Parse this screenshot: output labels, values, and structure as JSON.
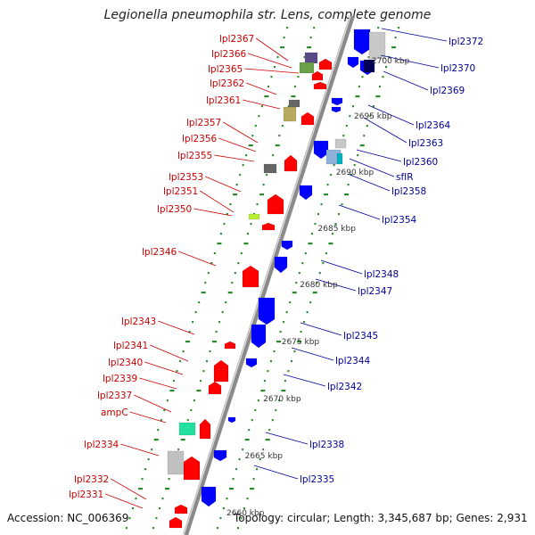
{
  "title": "Legionella pneumophila str. Lens, complete genome",
  "footer": {
    "accession": "Accession: NC_006369",
    "topology": "Topology: circular; Length: 3,345,687 bp; Genes: 2,931"
  },
  "colors": {
    "left_label": "#cc0000",
    "right_label": "#000099",
    "backbone": "#8c8c8c",
    "tick": "#2a8a2a",
    "forward_gene": "#ff0000",
    "reverse_gene": "#0000ff"
  },
  "scale_labels": [
    "2700 kbp",
    "2695 kbp",
    "2690 kbp",
    "2685 kbp",
    "2680 kbp",
    "2675 kbp",
    "2670 kbp",
    "2665 kbp",
    "2660 kbp"
  ],
  "left_genes": [
    "lpl2367",
    "lpl2366",
    "lpl2365",
    "lpl2362",
    "lpl2361",
    "lpl2357",
    "lpl2356",
    "lpl2355",
    "lpl2353",
    "lpl2351",
    "lpl2350",
    "lpl2346",
    "lpl2343",
    "lpl2341",
    "lpl2340",
    "lpl2339",
    "lpl2337",
    "ampC",
    "lpl2334",
    "lpl2332",
    "lpl2331"
  ],
  "right_genes": [
    "lpl2372",
    "lpl2370",
    "lpl2369",
    "lpl2364",
    "lpl2363",
    "lpl2360",
    "sfIR",
    "lpl2358",
    "lpl2354",
    "lpl2348",
    "lpl2347",
    "lpl2345",
    "lpl2344",
    "lpl2342",
    "lpl2338",
    "lpl2335"
  ]
}
